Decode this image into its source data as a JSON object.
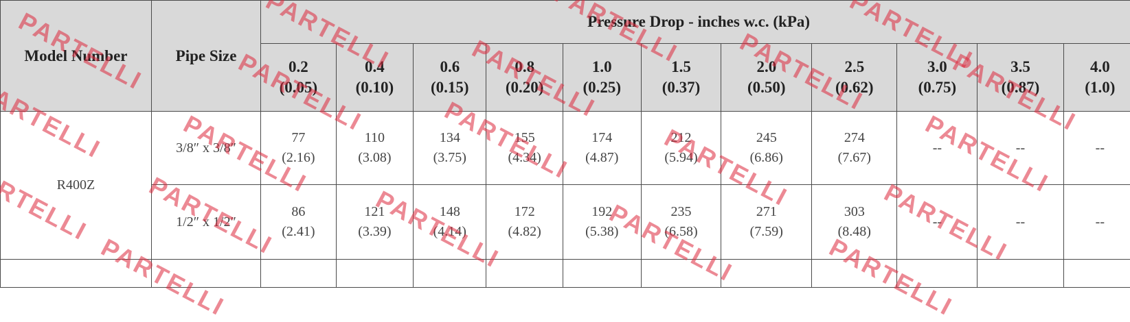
{
  "header": {
    "model_number": "Model Number",
    "pipe_size": "Pipe Size",
    "pressure_drop_title": "Pressure Drop - inches w.c. (kPa)",
    "columns": [
      {
        "iwc": "0.2",
        "kpa": "(0.05)"
      },
      {
        "iwc": "0.4",
        "kpa": "(0.10)"
      },
      {
        "iwc": "0.6",
        "kpa": "(0.15)"
      },
      {
        "iwc": "0.8",
        "kpa": "(0.20)"
      },
      {
        "iwc": "1.0",
        "kpa": "(0.25)"
      },
      {
        "iwc": "1.5",
        "kpa": "(0.37)"
      },
      {
        "iwc": "2.0",
        "kpa": "(0.50)"
      },
      {
        "iwc": "2.5",
        "kpa": "(0.62)"
      },
      {
        "iwc": "3.0",
        "kpa": "(0.75)"
      },
      {
        "iwc": "3.5",
        "kpa": "(0.87)"
      },
      {
        "iwc": "4.0",
        "kpa": "(1.0)"
      }
    ]
  },
  "rows": [
    {
      "model": "R400Z",
      "pipe_size": "3/8″ x 3/8″",
      "cells": [
        {
          "v": "77",
          "k": "(2.16)"
        },
        {
          "v": "110",
          "k": "(3.08)"
        },
        {
          "v": "134",
          "k": "(3.75)"
        },
        {
          "v": "155",
          "k": "(4.34)"
        },
        {
          "v": "174",
          "k": "(4.87)"
        },
        {
          "v": "212",
          "k": "(5.94)"
        },
        {
          "v": "245",
          "k": "(6.86)"
        },
        {
          "v": "274",
          "k": "(7.67)"
        },
        {
          "v": "--",
          "k": ""
        },
        {
          "v": "--",
          "k": ""
        },
        {
          "v": "--",
          "k": ""
        }
      ]
    },
    {
      "model": "R400Z",
      "pipe_size": "1/2″ x 1/2″",
      "cells": [
        {
          "v": "86",
          "k": "(2.41)"
        },
        {
          "v": "121",
          "k": "(3.39)"
        },
        {
          "v": "148",
          "k": "(4.14)"
        },
        {
          "v": "172",
          "k": "(4.82)"
        },
        {
          "v": "192",
          "k": "(5.38)"
        },
        {
          "v": "235",
          "k": "(6.58)"
        },
        {
          "v": "271",
          "k": "(7.59)"
        },
        {
          "v": "303",
          "k": "(8.48)"
        },
        {
          "v": "--",
          "k": ""
        },
        {
          "v": "--",
          "k": ""
        },
        {
          "v": "--",
          "k": ""
        }
      ]
    }
  ],
  "watermark": {
    "text": "PARTELLI",
    "color": "#dc283c"
  }
}
